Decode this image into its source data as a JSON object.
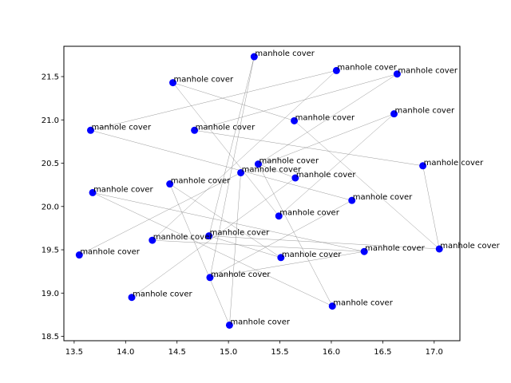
{
  "chart_data": {
    "type": "scatter",
    "title": "",
    "xlabel": "",
    "ylabel": "",
    "xlim": [
      13.4,
      17.25
    ],
    "ylim": [
      18.45,
      21.85
    ],
    "x_ticks": [
      13.5,
      14.0,
      14.5,
      15.0,
      15.5,
      16.0,
      16.5,
      17.0
    ],
    "x_tick_labels": [
      "13.5",
      "14.0",
      "14.5",
      "15.0",
      "15.5",
      "16.0",
      "16.5",
      "17.0"
    ],
    "y_ticks": [
      18.5,
      19.0,
      19.5,
      20.0,
      20.5,
      21.0,
      21.5
    ],
    "y_tick_labels": [
      "18.5",
      "19.0",
      "19.5",
      "20.0",
      "20.5",
      "21.0",
      "21.5"
    ],
    "grid": false,
    "marker_color": "#0000ff",
    "edge_color": "#808080",
    "points": [
      {
        "x": 15.25,
        "y": 21.73,
        "label": "manhole cover"
      },
      {
        "x": 16.05,
        "y": 21.57,
        "label": "manhole cover"
      },
      {
        "x": 16.64,
        "y": 21.53,
        "label": "manhole cover"
      },
      {
        "x": 14.46,
        "y": 21.43,
        "label": "manhole cover"
      },
      {
        "x": 16.61,
        "y": 21.07,
        "label": "manhole cover"
      },
      {
        "x": 15.64,
        "y": 20.99,
        "label": "manhole cover"
      },
      {
        "x": 13.66,
        "y": 20.88,
        "label": "manhole cover"
      },
      {
        "x": 14.67,
        "y": 20.88,
        "label": "manhole cover"
      },
      {
        "x": 15.29,
        "y": 20.49,
        "label": "manhole cover"
      },
      {
        "x": 16.89,
        "y": 20.47,
        "label": "manhole cover"
      },
      {
        "x": 15.12,
        "y": 20.39,
        "label": "manhole cover"
      },
      {
        "x": 15.65,
        "y": 20.33,
        "label": "manhole cover"
      },
      {
        "x": 14.43,
        "y": 20.26,
        "label": "manhole cover"
      },
      {
        "x": 13.68,
        "y": 20.16,
        "label": "manhole cover"
      },
      {
        "x": 16.2,
        "y": 20.07,
        "label": "manhole cover"
      },
      {
        "x": 15.49,
        "y": 19.89,
        "label": "manhole cover"
      },
      {
        "x": 14.81,
        "y": 19.66,
        "label": "manhole cover"
      },
      {
        "x": 14.26,
        "y": 19.61,
        "label": "manhole cover"
      },
      {
        "x": 17.05,
        "y": 19.51,
        "label": "manhole cover"
      },
      {
        "x": 16.32,
        "y": 19.48,
        "label": "manhole cover"
      },
      {
        "x": 13.55,
        "y": 19.44,
        "label": "manhole cover"
      },
      {
        "x": 15.51,
        "y": 19.41,
        "label": "manhole cover"
      },
      {
        "x": 14.82,
        "y": 19.18,
        "label": "manhole cover"
      },
      {
        "x": 14.06,
        "y": 18.95,
        "label": "manhole cover"
      },
      {
        "x": 16.01,
        "y": 18.85,
        "label": "manhole cover"
      },
      {
        "x": 15.01,
        "y": 18.63,
        "label": "manhole cover"
      }
    ],
    "edges": [
      [
        0,
        16
      ],
      [
        0,
        22
      ],
      [
        1,
        6
      ],
      [
        1,
        17
      ],
      [
        2,
        8
      ],
      [
        3,
        5
      ],
      [
        3,
        15
      ],
      [
        4,
        10
      ],
      [
        4,
        15
      ],
      [
        5,
        18
      ],
      [
        6,
        14
      ],
      [
        7,
        9
      ],
      [
        8,
        24
      ],
      [
        9,
        18
      ],
      [
        10,
        20
      ],
      [
        11,
        23
      ],
      [
        12,
        25
      ],
      [
        12,
        21
      ],
      [
        13,
        19
      ],
      [
        13,
        24
      ],
      [
        14,
        22
      ],
      [
        16,
        18
      ],
      [
        17,
        19
      ],
      [
        19,
        22
      ],
      [
        11,
        8
      ],
      [
        2,
        7
      ],
      [
        10,
        25
      ],
      [
        16,
        21
      ]
    ]
  }
}
